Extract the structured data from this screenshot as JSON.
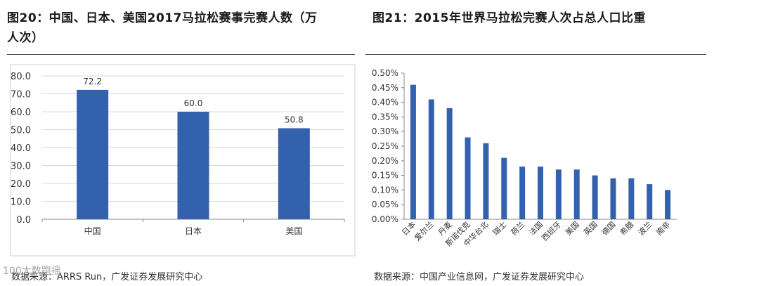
{
  "left": {
    "title_line1": "图20：中国、日本、美国2017马拉松赛事完赛人数（万",
    "title_line2": "人次）",
    "source": "数据来源：ARRS Run，广发证券发展研究中心"
  },
  "right": {
    "title": "图21：2015年世界马拉松完赛人次占总人口比重",
    "source": "数据来源：中国产业信息网，广发证券发展研究中心"
  },
  "watermark": "100大数跑摇",
  "colors": {
    "bar": "#3461ad",
    "grid": "#d9d9d9",
    "axis": "#888888"
  },
  "chart_data": [
    {
      "type": "bar",
      "title": "图20：中国、日本、美国2017马拉松赛事完赛人数（万人次）",
      "categories": [
        "中国",
        "日本",
        "美国"
      ],
      "values": [
        72.2,
        60.0,
        50.8
      ],
      "data_labels": [
        "72.2",
        "60.0",
        "50.8"
      ],
      "ylim": [
        0,
        80
      ],
      "yticks": [
        "0.0",
        "10.0",
        "20.0",
        "30.0",
        "40.0",
        "50.0",
        "60.0",
        "70.0",
        "80.0"
      ],
      "grid": true,
      "xlabel": "",
      "ylabel": ""
    },
    {
      "type": "bar",
      "title": "图21：2015年世界马拉松完赛人次占总人口比重",
      "categories": [
        "日本",
        "爱尔兰",
        "丹麦",
        "斯诺伐克",
        "中华台北",
        "瑞士",
        "荷兰",
        "法国",
        "西班牙",
        "美国",
        "英国",
        "德国",
        "希腊",
        "波兰",
        "南非"
      ],
      "values": [
        0.46,
        0.41,
        0.38,
        0.28,
        0.26,
        0.21,
        0.18,
        0.18,
        0.17,
        0.17,
        0.15,
        0.14,
        0.14,
        0.12,
        0.1
      ],
      "ylim": [
        0,
        0.5
      ],
      "yticks": [
        "0.00%",
        "0.05%",
        "0.10%",
        "0.15%",
        "0.20%",
        "0.25%",
        "0.30%",
        "0.35%",
        "0.40%",
        "0.45%",
        "0.50%"
      ],
      "grid": false,
      "xlabel": "",
      "ylabel": ""
    }
  ]
}
